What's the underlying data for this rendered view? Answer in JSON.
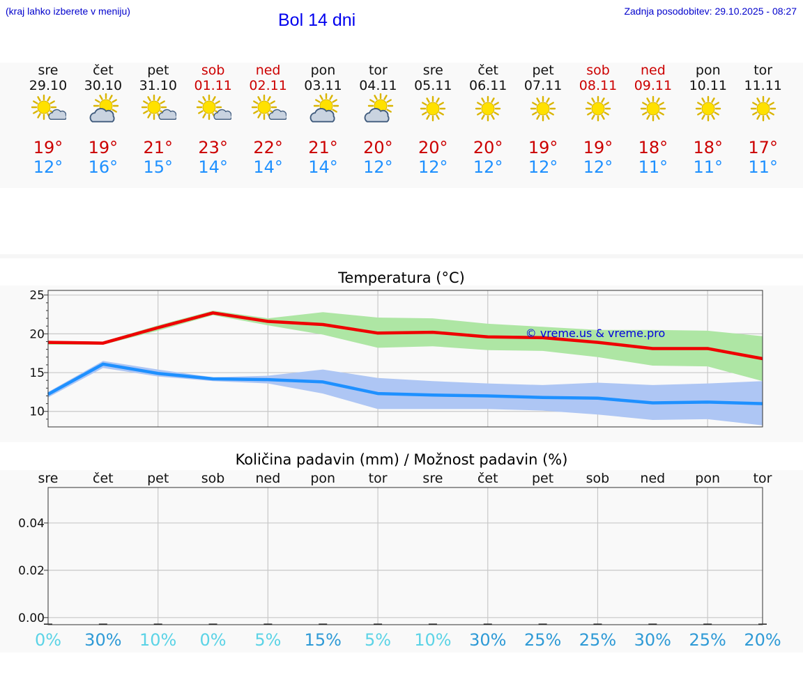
{
  "header": {
    "hint": "(kraj lahko izberete v meniju)",
    "title": "Bol 14 dni",
    "updated": "Zadnja posodobitev: 29.10.2025 - 08:27"
  },
  "colors": {
    "max": "#ee0000",
    "min": "#1e90ff",
    "max_band": "#aee6a4",
    "min_band": "#aec6f4",
    "weekend": "#cc0000",
    "prob_light": "#5bd3e6",
    "prob_dark": "#2e9ad6"
  },
  "days": [
    {
      "name": "sre",
      "date": "29.10",
      "max": "19°",
      "min": "12°",
      "icon": "sun-small-cloud-icon",
      "weekend": false
    },
    {
      "name": "čet",
      "date": "30.10",
      "max": "19°",
      "min": "16°",
      "icon": "sun-cloud-icon",
      "weekend": false
    },
    {
      "name": "pet",
      "date": "31.10",
      "max": "21°",
      "min": "15°",
      "icon": "sun-small-cloud-icon",
      "weekend": false
    },
    {
      "name": "sob",
      "date": "01.11",
      "max": "23°",
      "min": "14°",
      "icon": "sun-small-cloud-icon",
      "weekend": true
    },
    {
      "name": "ned",
      "date": "02.11",
      "max": "22°",
      "min": "14°",
      "icon": "sun-small-cloud-icon",
      "weekend": true
    },
    {
      "name": "pon",
      "date": "03.11",
      "max": "21°",
      "min": "14°",
      "icon": "sun-cloud-icon",
      "weekend": false
    },
    {
      "name": "tor",
      "date": "04.11",
      "max": "20°",
      "min": "12°",
      "icon": "sun-cloud-icon",
      "weekend": false
    },
    {
      "name": "sre",
      "date": "05.11",
      "max": "20°",
      "min": "12°",
      "icon": "sun-icon",
      "weekend": false
    },
    {
      "name": "čet",
      "date": "06.11",
      "max": "20°",
      "min": "12°",
      "icon": "sun-icon",
      "weekend": false
    },
    {
      "name": "pet",
      "date": "07.11",
      "max": "19°",
      "min": "12°",
      "icon": "sun-icon",
      "weekend": false
    },
    {
      "name": "sob",
      "date": "08.11",
      "max": "19°",
      "min": "12°",
      "icon": "sun-icon",
      "weekend": true
    },
    {
      "name": "ned",
      "date": "09.11",
      "max": "18°",
      "min": "11°",
      "icon": "sun-icon",
      "weekend": true
    },
    {
      "name": "pon",
      "date": "10.11",
      "max": "18°",
      "min": "11°",
      "icon": "sun-icon",
      "weekend": false
    },
    {
      "name": "tor",
      "date": "11.11",
      "max": "17°",
      "min": "11°",
      "icon": "sun-icon",
      "weekend": false
    }
  ],
  "chart_data": [
    {
      "type": "line",
      "title": "Temperatura (°C)",
      "x": [
        0,
        1,
        2,
        3,
        4,
        5,
        6,
        7,
        8,
        9,
        10,
        11,
        12,
        13
      ],
      "ylim": [
        8,
        25.6
      ],
      "yticks": [
        10,
        15,
        20,
        25
      ],
      "grid": true,
      "watermark": "© vreme.us & vreme.pro",
      "series": [
        {
          "name": "max",
          "values": [
            18.9,
            18.8,
            20.8,
            22.7,
            21.6,
            21.2,
            20.1,
            20.2,
            19.6,
            19.5,
            18.9,
            18.1,
            18.1,
            16.8
          ]
        },
        {
          "name": "min",
          "values": [
            12.2,
            16.1,
            14.9,
            14.2,
            14.1,
            13.8,
            12.3,
            12.1,
            12.0,
            11.8,
            11.7,
            11.1,
            11.2,
            11.0
          ]
        }
      ],
      "bands": [
        {
          "name": "max-range",
          "upper": [
            19.1,
            19.0,
            21.1,
            23.0,
            22.0,
            22.8,
            22.1,
            22.0,
            21.3,
            20.9,
            20.5,
            20.5,
            20.4,
            19.7
          ],
          "lower": [
            18.6,
            18.6,
            20.4,
            22.4,
            21.1,
            19.9,
            18.2,
            18.4,
            17.9,
            17.8,
            17.0,
            15.9,
            15.8,
            13.9
          ]
        },
        {
          "name": "min-range",
          "upper": [
            12.5,
            16.5,
            15.4,
            14.4,
            14.6,
            15.4,
            14.3,
            13.9,
            13.6,
            13.4,
            13.7,
            13.4,
            13.6,
            13.9
          ],
          "lower": [
            11.8,
            15.6,
            14.5,
            13.9,
            13.6,
            12.3,
            10.3,
            10.3,
            10.3,
            10.1,
            9.6,
            8.9,
            9.0,
            8.2
          ]
        }
      ]
    },
    {
      "type": "bar",
      "title": "Količina padavin (mm) / Možnost padavin (%)",
      "categories": [
        "sre",
        "čet",
        "pet",
        "sob",
        "ned",
        "pon",
        "tor",
        "sre",
        "čet",
        "pet",
        "sob",
        "ned",
        "pon",
        "tor"
      ],
      "values": [
        0,
        0,
        0,
        0,
        0,
        0,
        0,
        0,
        0,
        0,
        0,
        0,
        0,
        0
      ],
      "ylim": [
        -0.003,
        0.055
      ],
      "yticks": [
        "0.00",
        "0.02",
        "0.04"
      ],
      "probability": [
        "0%",
        "30%",
        "10%",
        "0%",
        "5%",
        "15%",
        "5%",
        "10%",
        "30%",
        "25%",
        "25%",
        "30%",
        "25%",
        "20%"
      ],
      "probability_values": [
        0,
        30,
        10,
        0,
        5,
        15,
        5,
        10,
        30,
        25,
        25,
        30,
        25,
        20
      ]
    }
  ]
}
